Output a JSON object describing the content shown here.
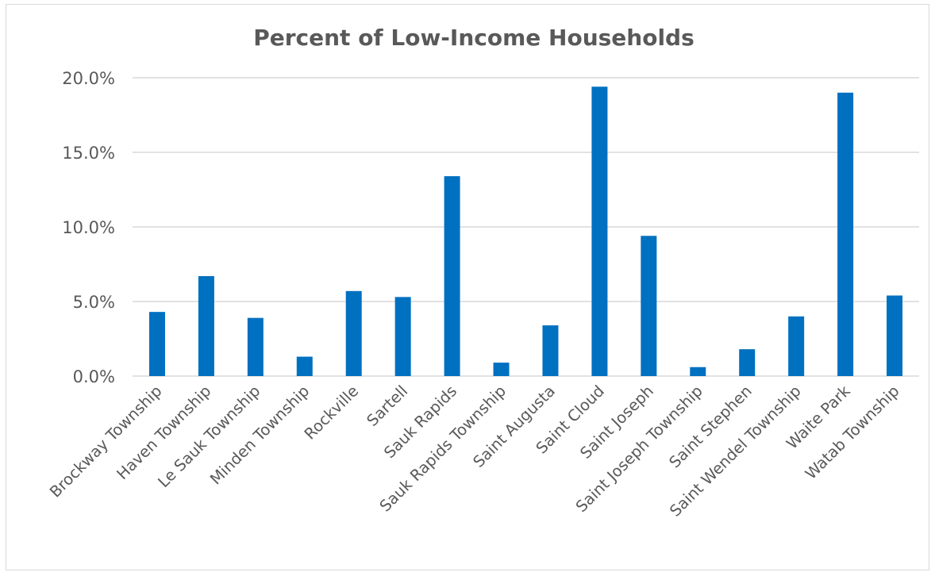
{
  "chart_data": {
    "type": "bar",
    "title": "Percent of Low-Income Households",
    "xlabel": "",
    "ylabel": "",
    "categories": [
      "Brockway Township",
      "Haven Township",
      "Le Sauk Township",
      "Minden Township",
      "Rockville",
      "Sartell",
      "Sauk Rapids",
      "Sauk Rapids Township",
      "Saint Augusta",
      "Saint Cloud",
      "Saint Joseph",
      "Saint Joseph Township",
      "Saint Stephen",
      "Saint Wendel Township",
      "Waite Park",
      "Watab Township"
    ],
    "values": [
      4.3,
      6.7,
      3.9,
      1.3,
      5.7,
      5.3,
      13.4,
      0.9,
      3.4,
      19.4,
      9.4,
      0.6,
      1.8,
      4.0,
      19.0,
      5.4
    ],
    "value_format": "percent_1dp",
    "ylim": [
      0,
      20
    ],
    "yticks": [
      0,
      5,
      10,
      15,
      20
    ],
    "ytick_labels": [
      "0.0%",
      "5.0%",
      "10.0%",
      "15.0%",
      "20.0%"
    ],
    "grid": true,
    "legend": "none",
    "colors": {
      "bar": "#0070C0",
      "grid": "#d9d9d9",
      "text": "#595959",
      "frame": "#d9d9d9"
    }
  }
}
